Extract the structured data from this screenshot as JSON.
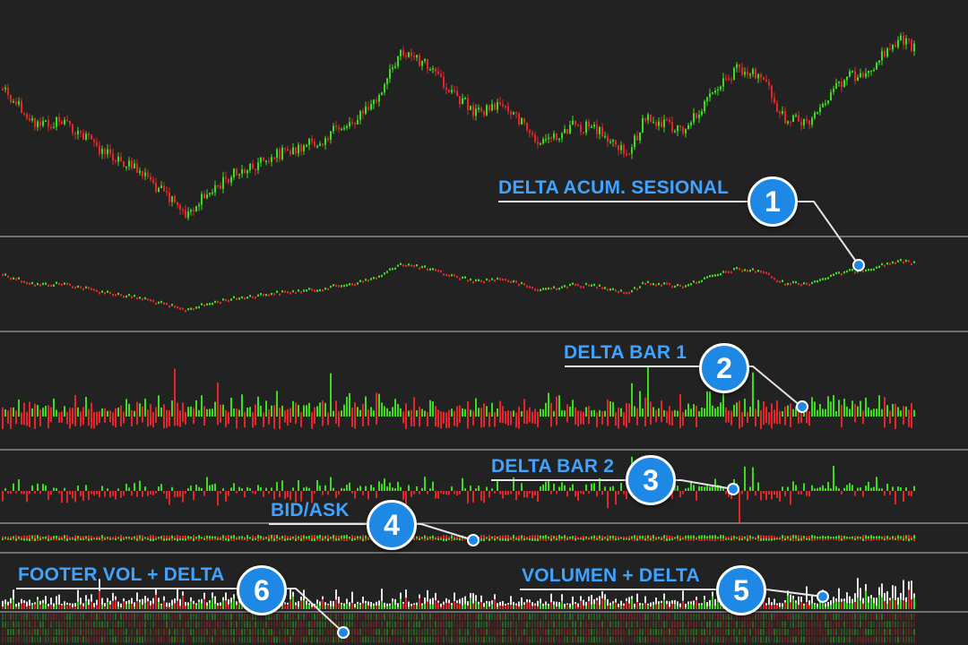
{
  "callouts": [
    {
      "number": "1",
      "label": "DELTA ACUM. SESIONAL"
    },
    {
      "number": "2",
      "label": "DELTA BAR 1"
    },
    {
      "number": "3",
      "label": "DELTA BAR 2"
    },
    {
      "number": "4",
      "label": "BID/ASK"
    },
    {
      "number": "5",
      "label": "VOLUMEN + DELTA"
    },
    {
      "number": "6",
      "label": "FOOTER VOL + DELTA"
    }
  ],
  "colors": {
    "background": "#222222",
    "up": "#3ddc1f",
    "down": "#e2262a",
    "separator": "#bdbdbd",
    "callout": "#3fa3ff",
    "badge": "#1e88e5",
    "volume": "#e6e6e6"
  },
  "chart_data": [
    {
      "type": "candlestick",
      "panel": "price",
      "series_shape": "down to a low near x=200, rally to a high near x=445, pullback to a low near x=700, rally to a high near x=1010"
    },
    {
      "type": "line",
      "panel": "cumulative-delta",
      "title": "DELTA ACUM. SESIONAL"
    },
    {
      "type": "bar",
      "panel": "delta-bar-1",
      "title": "DELTA BAR 1"
    },
    {
      "type": "bar",
      "panel": "delta-bar-2",
      "title": "DELTA BAR 2"
    },
    {
      "type": "bar",
      "panel": "bid-ask",
      "title": "BID/ASK"
    },
    {
      "type": "bar",
      "panel": "volume-delta",
      "title": "VOLUMEN + DELTA"
    },
    {
      "type": "heatmap",
      "panel": "footer-vol-delta",
      "title": "FOOTER VOL + DELTA"
    }
  ]
}
